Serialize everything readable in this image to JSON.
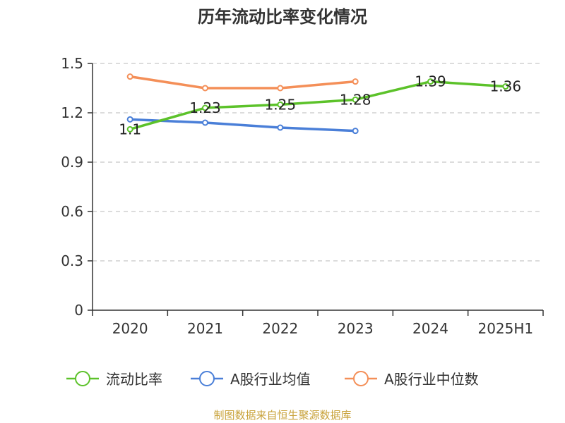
{
  "chart_data": {
    "type": "line",
    "title": "历年流动比率变化情况",
    "categories": [
      "2020",
      "2021",
      "2022",
      "2023",
      "2024",
      "2025H1"
    ],
    "ylim": [
      0,
      1.5
    ],
    "yticks": [
      "0",
      "0.3",
      "0.6",
      "0.9",
      "1.2",
      "1.5"
    ],
    "grid": true,
    "legend_position": "bottom",
    "series": [
      {
        "name": "流动比率",
        "color": "#5cc22a",
        "values": [
          1.1,
          1.23,
          1.25,
          1.28,
          1.39,
          1.36
        ],
        "labels": [
          "1.1",
          "1.23",
          "1.25",
          "1.28",
          "1.39",
          "1.36"
        ]
      },
      {
        "name": "A股行业均值",
        "color": "#4a7fd8",
        "values": [
          1.16,
          1.14,
          1.11,
          1.09,
          null,
          null
        ]
      },
      {
        "name": "A股行业中位数",
        "color": "#f48f58",
        "values": [
          1.42,
          1.35,
          1.35,
          1.39,
          null,
          null
        ]
      }
    ]
  },
  "source": {
    "text": "制图数据来自恒生聚源数据库",
    "color": "#c8a23a"
  }
}
